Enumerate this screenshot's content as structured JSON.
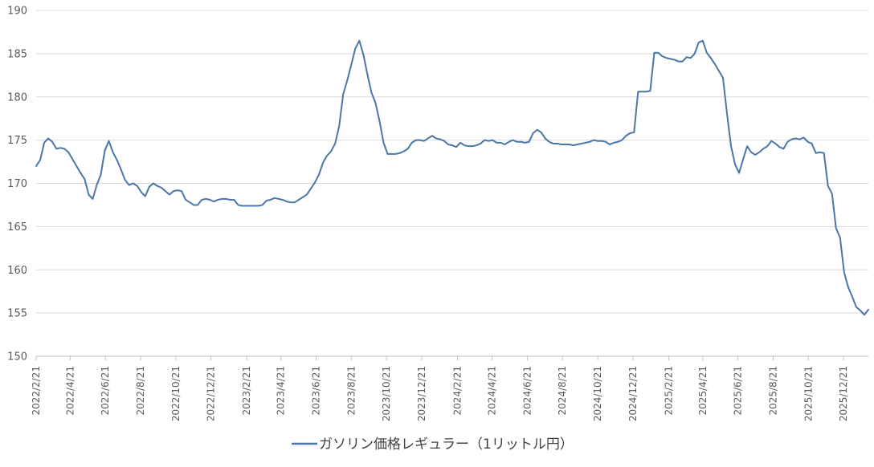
{
  "chart_data": {
    "type": "line",
    "title": "",
    "xlabel": "",
    "ylabel": "",
    "ylim": [
      150,
      190
    ],
    "y_ticks": [
      "150",
      "155",
      "160",
      "165",
      "170",
      "175",
      "180",
      "185",
      "190"
    ],
    "x_tick_labels": [
      "2022/2/21",
      "2022/4/21",
      "2022/6/21",
      "2022/8/21",
      "2022/10/21",
      "2022/12/21",
      "2023/2/21",
      "2023/4/21",
      "2023/6/21",
      "2023/8/21",
      "2023/10/21",
      "2023/12/21",
      "2024/2/21",
      "2024/4/21",
      "2024/6/21",
      "2024/8/21",
      "2024/10/21",
      "2024/12/21",
      "2025/2/21",
      "2025/4/21",
      "2025/6/21",
      "2025/8/21",
      "2025/10/21",
      "2025/12/21"
    ],
    "grid": true,
    "legend_position": "bottom",
    "series": [
      {
        "name": "ガソリン価格レギュラー（1リットル円）",
        "color": "#4a76a8",
        "x": [
          "2022-02-21",
          "2022-02-28",
          "2022-03-07",
          "2022-03-14",
          "2022-03-21",
          "2022-03-28",
          "2022-04-04",
          "2022-04-11",
          "2022-04-18",
          "2022-04-25",
          "2022-05-02",
          "2022-05-09",
          "2022-05-16",
          "2022-05-23",
          "2022-05-30",
          "2022-06-06",
          "2022-06-13",
          "2022-06-20",
          "2022-06-27",
          "2022-07-04",
          "2022-07-11",
          "2022-07-18",
          "2022-07-25",
          "2022-08-01",
          "2022-08-08",
          "2022-08-15",
          "2022-08-22",
          "2022-08-29",
          "2022-09-05",
          "2022-09-12",
          "2022-09-19",
          "2022-09-26",
          "2022-10-03",
          "2022-10-10",
          "2022-10-17",
          "2022-10-24",
          "2022-10-31",
          "2022-11-07",
          "2022-11-14",
          "2022-11-21",
          "2022-11-28",
          "2022-12-05",
          "2022-12-12",
          "2022-12-19",
          "2022-12-26",
          "2023-01-02",
          "2023-01-09",
          "2023-01-16",
          "2023-01-23",
          "2023-01-30",
          "2023-02-06",
          "2023-02-13",
          "2023-02-20",
          "2023-02-27",
          "2023-03-06",
          "2023-03-13",
          "2023-03-20",
          "2023-03-27",
          "2023-04-03",
          "2023-04-10",
          "2023-04-17",
          "2023-04-24",
          "2023-05-01",
          "2023-05-08",
          "2023-05-15",
          "2023-05-22",
          "2023-05-29",
          "2023-06-05",
          "2023-06-12",
          "2023-06-19",
          "2023-06-26",
          "2023-07-03",
          "2023-07-10",
          "2023-07-17",
          "2023-07-24",
          "2023-07-31",
          "2023-08-07",
          "2023-08-14",
          "2023-08-21",
          "2023-08-28",
          "2023-09-04",
          "2023-09-11",
          "2023-09-18",
          "2023-09-25",
          "2023-10-02",
          "2023-10-09",
          "2023-10-16",
          "2023-10-23",
          "2023-10-30",
          "2023-11-06",
          "2023-11-13",
          "2023-11-20",
          "2023-11-27",
          "2023-12-04",
          "2023-12-11",
          "2023-12-18",
          "2023-12-25",
          "2024-01-01",
          "2024-01-08",
          "2024-01-15",
          "2024-01-22",
          "2024-01-29",
          "2024-02-05",
          "2024-02-12",
          "2024-02-19",
          "2024-02-26",
          "2024-03-04",
          "2024-03-11",
          "2024-03-18",
          "2024-03-25",
          "2024-04-01",
          "2024-04-08",
          "2024-04-15",
          "2024-04-22",
          "2024-04-29",
          "2024-05-06",
          "2024-05-13",
          "2024-05-20",
          "2024-05-27",
          "2024-06-03",
          "2024-06-10",
          "2024-06-17",
          "2024-06-24",
          "2024-07-01",
          "2024-07-08",
          "2024-07-15",
          "2024-07-22",
          "2024-07-29",
          "2024-08-05",
          "2024-08-12",
          "2024-08-19",
          "2024-08-26",
          "2024-09-02",
          "2024-09-09",
          "2024-09-16",
          "2024-09-23",
          "2024-09-30",
          "2024-10-07",
          "2024-10-14",
          "2024-10-21",
          "2024-10-28",
          "2024-11-04",
          "2024-11-11",
          "2024-11-18",
          "2024-11-25",
          "2024-12-02",
          "2024-12-09",
          "2024-12-16",
          "2024-12-23",
          "2024-12-30",
          "2025-01-06",
          "2025-01-13",
          "2025-01-20",
          "2025-01-27",
          "2025-02-03",
          "2025-02-10",
          "2025-02-17",
          "2025-02-24",
          "2025-03-03",
          "2025-03-10",
          "2025-03-17",
          "2025-03-24",
          "2025-03-31",
          "2025-04-07",
          "2025-04-14",
          "2025-04-21",
          "2025-04-28",
          "2025-05-05",
          "2025-05-12",
          "2025-05-19",
          "2025-05-26",
          "2025-06-02",
          "2025-06-09",
          "2025-06-16",
          "2025-06-23",
          "2025-06-30",
          "2025-07-07",
          "2025-07-14",
          "2025-07-21",
          "2025-07-28",
          "2025-08-04",
          "2025-08-11",
          "2025-08-18",
          "2025-08-25",
          "2025-09-01",
          "2025-09-08",
          "2025-09-15",
          "2025-09-22",
          "2025-09-29",
          "2025-10-06",
          "2025-10-13",
          "2025-10-20",
          "2025-10-27",
          "2025-11-03",
          "2025-11-10",
          "2025-11-17",
          "2025-11-24",
          "2025-12-01",
          "2025-12-08",
          "2025-12-15",
          "2025-12-22",
          "2025-12-29",
          "2026-01-05",
          "2026-01-12",
          "2026-01-19",
          "2026-01-26",
          "2026-02-02"
        ],
        "values": [
          172.0,
          172.7,
          174.7,
          175.2,
          174.8,
          174.0,
          174.1,
          174.0,
          173.6,
          172.8,
          172.0,
          171.2,
          170.5,
          168.7,
          168.2,
          169.8,
          171.0,
          173.8,
          174.9,
          173.6,
          172.7,
          171.6,
          170.4,
          169.8,
          170.0,
          169.7,
          169.0,
          168.5,
          169.6,
          170.0,
          169.7,
          169.5,
          169.1,
          168.7,
          169.1,
          169.2,
          169.1,
          168.1,
          167.8,
          167.5,
          167.5,
          168.1,
          168.2,
          168.1,
          167.9,
          168.1,
          168.2,
          168.2,
          168.1,
          168.1,
          167.5,
          167.4,
          167.4,
          167.4,
          167.4,
          167.4,
          167.5,
          168.0,
          168.1,
          168.3,
          168.2,
          168.1,
          167.9,
          167.8,
          167.8,
          168.1,
          168.4,
          168.7,
          169.4,
          170.1,
          171.0,
          172.4,
          173.2,
          173.7,
          174.6,
          176.6,
          180.3,
          181.9,
          183.7,
          185.6,
          186.5,
          184.9,
          182.6,
          180.5,
          179.3,
          177.2,
          174.7,
          173.4,
          173.4,
          173.4,
          173.5,
          173.7,
          174.0,
          174.7,
          175.0,
          175.0,
          174.9,
          175.2,
          175.5,
          175.2,
          175.1,
          174.9,
          174.5,
          174.4,
          174.2,
          174.7,
          174.4,
          174.3,
          174.3,
          174.4,
          174.6,
          175.0,
          174.9,
          175.0,
          174.7,
          174.7,
          174.5,
          174.8,
          175.0,
          174.8,
          174.8,
          174.7,
          174.8,
          175.8,
          176.2,
          175.9,
          175.2,
          174.8,
          174.6,
          174.6,
          174.5,
          174.5,
          174.5,
          174.4,
          174.5,
          174.6,
          174.7,
          174.8,
          175.0,
          174.9,
          174.9,
          174.8,
          174.5,
          174.7,
          174.8,
          175.0,
          175.5,
          175.8,
          175.9,
          180.6,
          180.6,
          180.6,
          180.7,
          185.1,
          185.1,
          184.7,
          184.5,
          184.4,
          184.3,
          184.1,
          184.1,
          184.6,
          184.5,
          185.0,
          186.3,
          186.5,
          185.1,
          184.5,
          183.8,
          183.0,
          182.2,
          178.1,
          174.3,
          172.2,
          171.2,
          172.8,
          174.3,
          173.6,
          173.3,
          173.6,
          174.0,
          174.3,
          174.9,
          174.6,
          174.2,
          174.0,
          174.8,
          175.1,
          175.2,
          175.1,
          175.3,
          174.8,
          174.6,
          173.5,
          173.6,
          173.5,
          169.7,
          168.8,
          164.8,
          163.7,
          159.7,
          158.0,
          156.9,
          155.7,
          155.3,
          154.8,
          155.4
        ]
      }
    ]
  }
}
